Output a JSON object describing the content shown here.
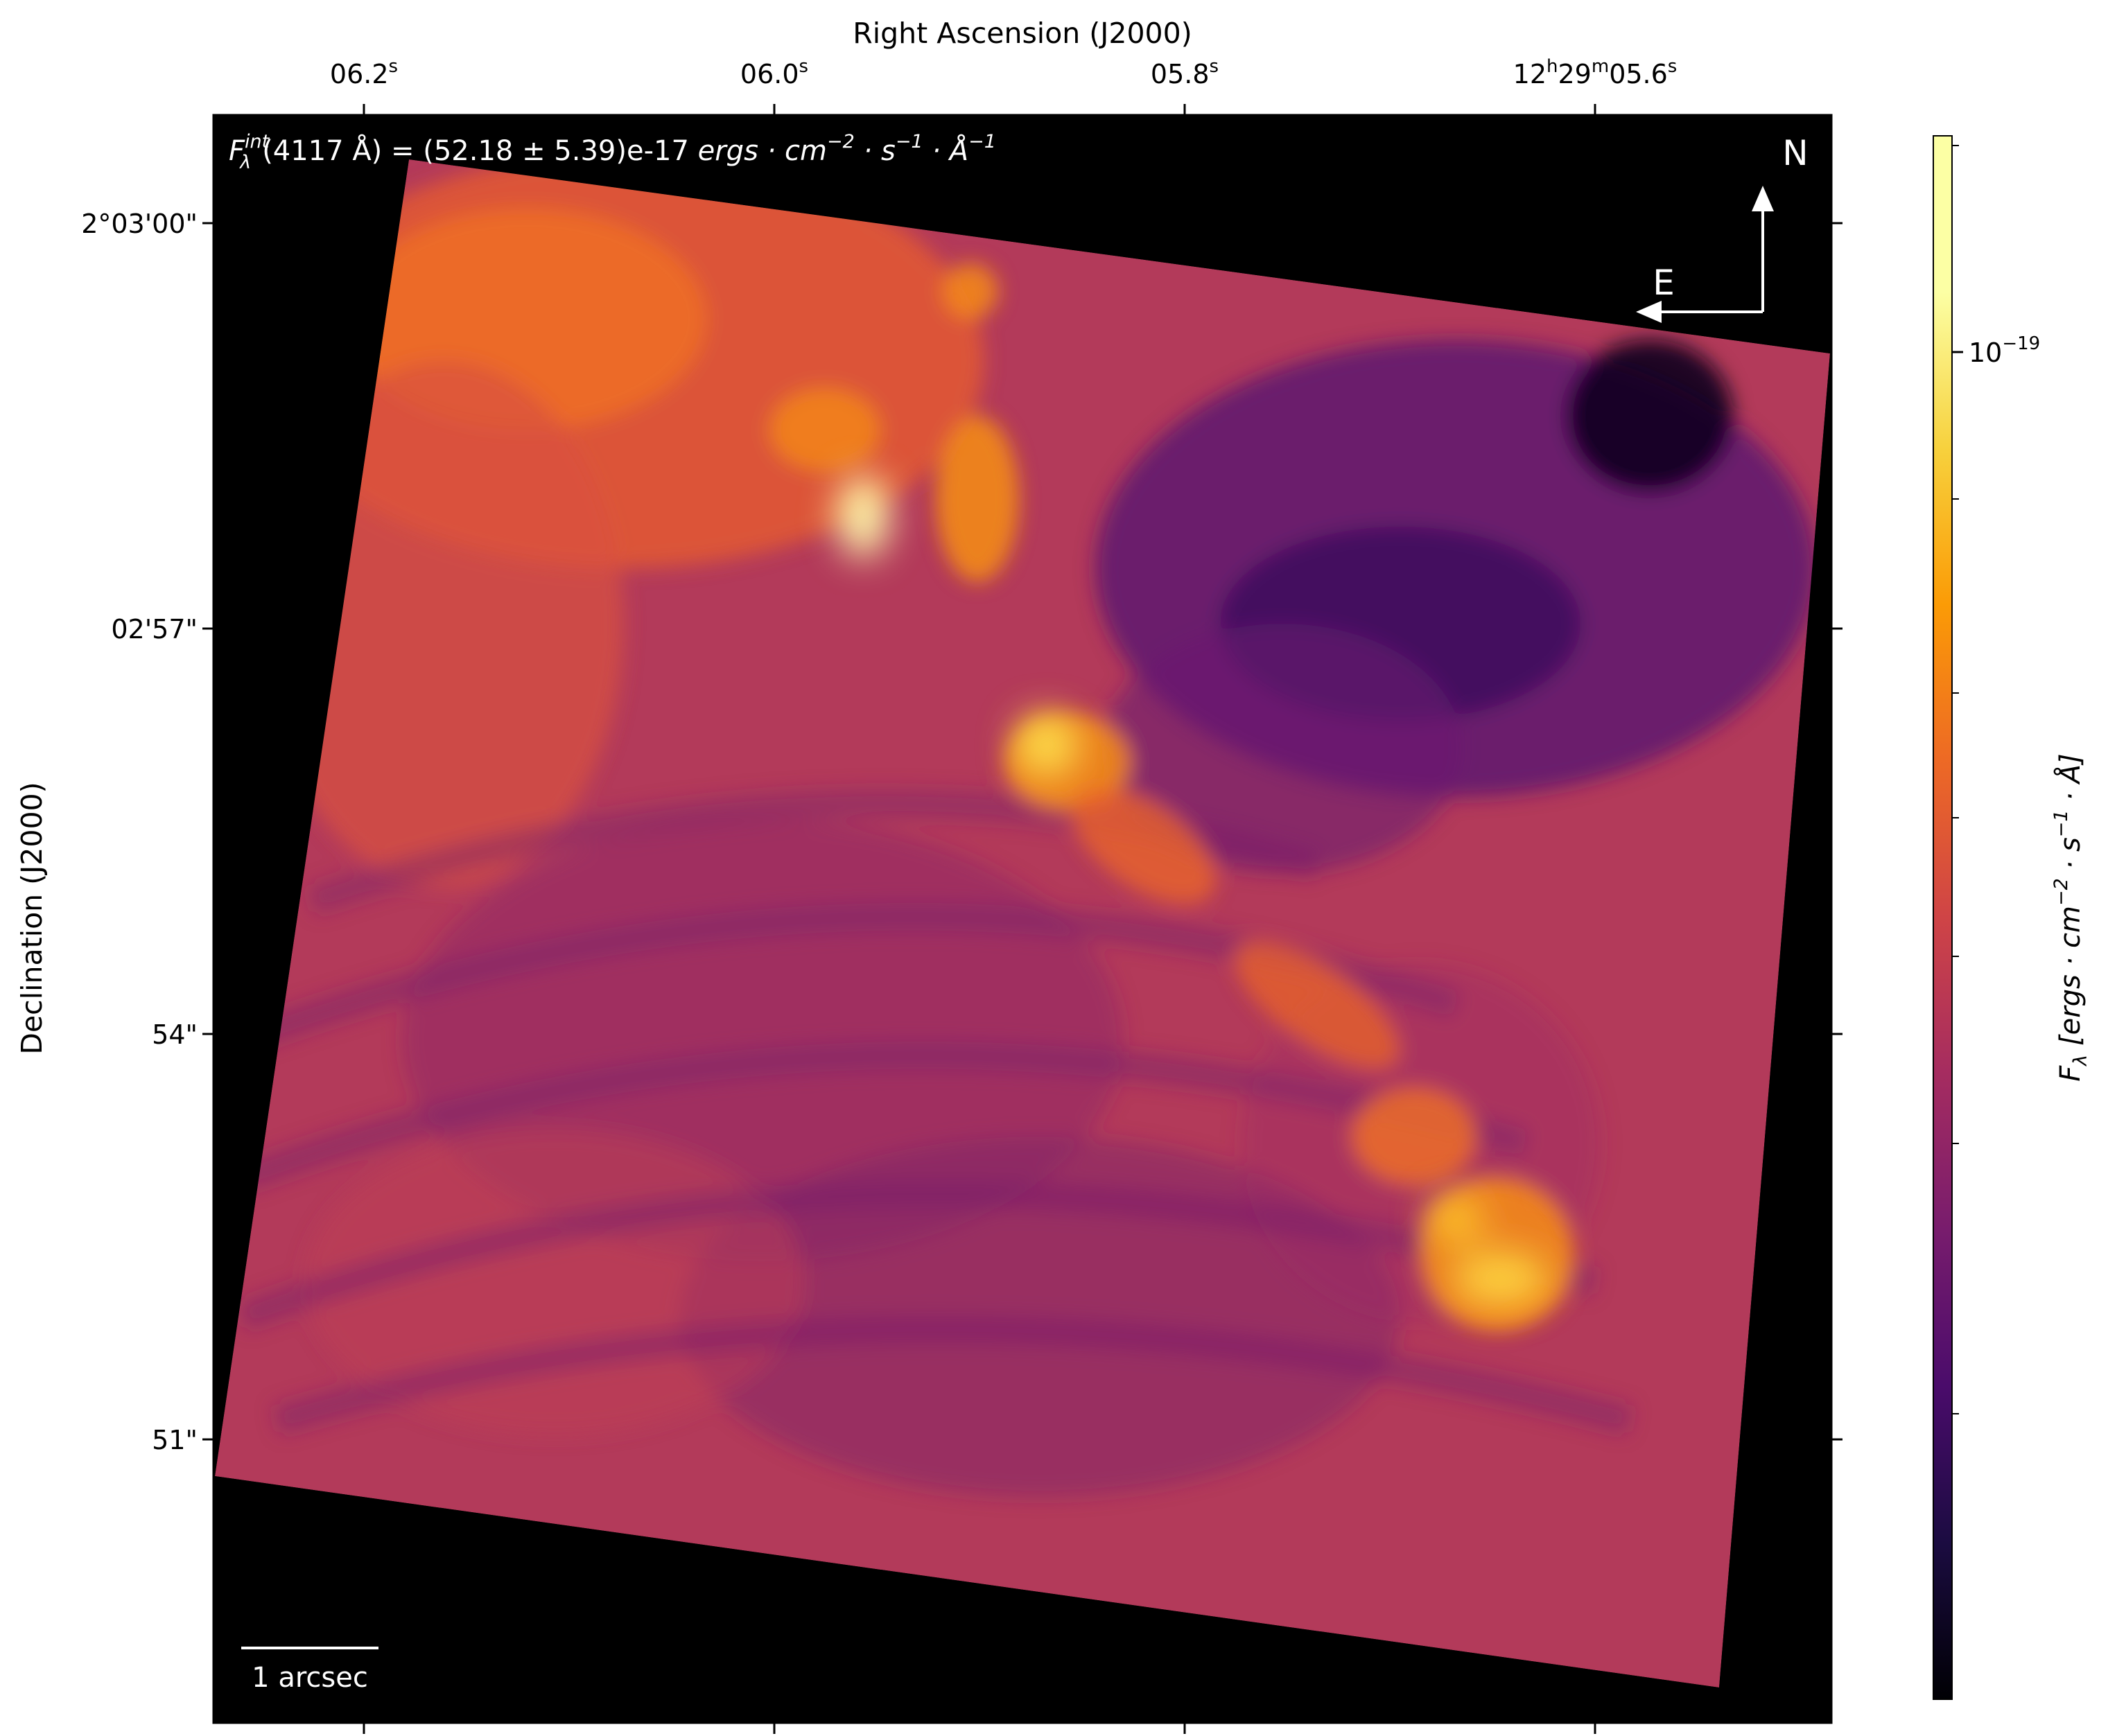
{
  "chart_data": {
    "type": "heatmap",
    "colormap": "inferno",
    "colors": {
      "background": "#000000",
      "overlay_text": "#ffffff",
      "frame": "#000000"
    },
    "x_axis": {
      "label": "Right Ascension (J2000)",
      "position": "top",
      "ticks": [
        {
          "main": "06.2",
          "sup": "s"
        },
        {
          "main": "06.0",
          "sup": "s"
        },
        {
          "main": "05.8",
          "sup": "s"
        },
        {
          "parts": [
            "12",
            "h",
            "29",
            "m",
            "05.6",
            "s"
          ]
        }
      ]
    },
    "y_axis": {
      "label": "Declination (J2000)",
      "ticks": [
        "2°03'00\"",
        "02'57\"",
        "54\"",
        "51\""
      ]
    },
    "flux_annotation": {
      "symbol": "F",
      "subscript": "λ",
      "superscript": "int",
      "text": "(4117 Å) = (52.18 ± 5.39)e-17 ",
      "units_italic": "ergs · cm",
      "exp1": "−2",
      "mid1": " · s",
      "exp2": "−1",
      "mid2": " · Å",
      "exp3": "−1"
    },
    "compass": {
      "north": "N",
      "east": "E"
    },
    "scale_bar": {
      "label": "1 arcsec"
    },
    "colorbar": {
      "label_symbol": "F",
      "label_subscript": "λ",
      "label_units": " [ergs · cm",
      "label_exp1": "−2",
      "label_mid": " · s",
      "label_exp2": "−1",
      "label_end": " · Å]",
      "tick_label": {
        "base": "10",
        "exp": "−19"
      },
      "scale": "log"
    }
  }
}
